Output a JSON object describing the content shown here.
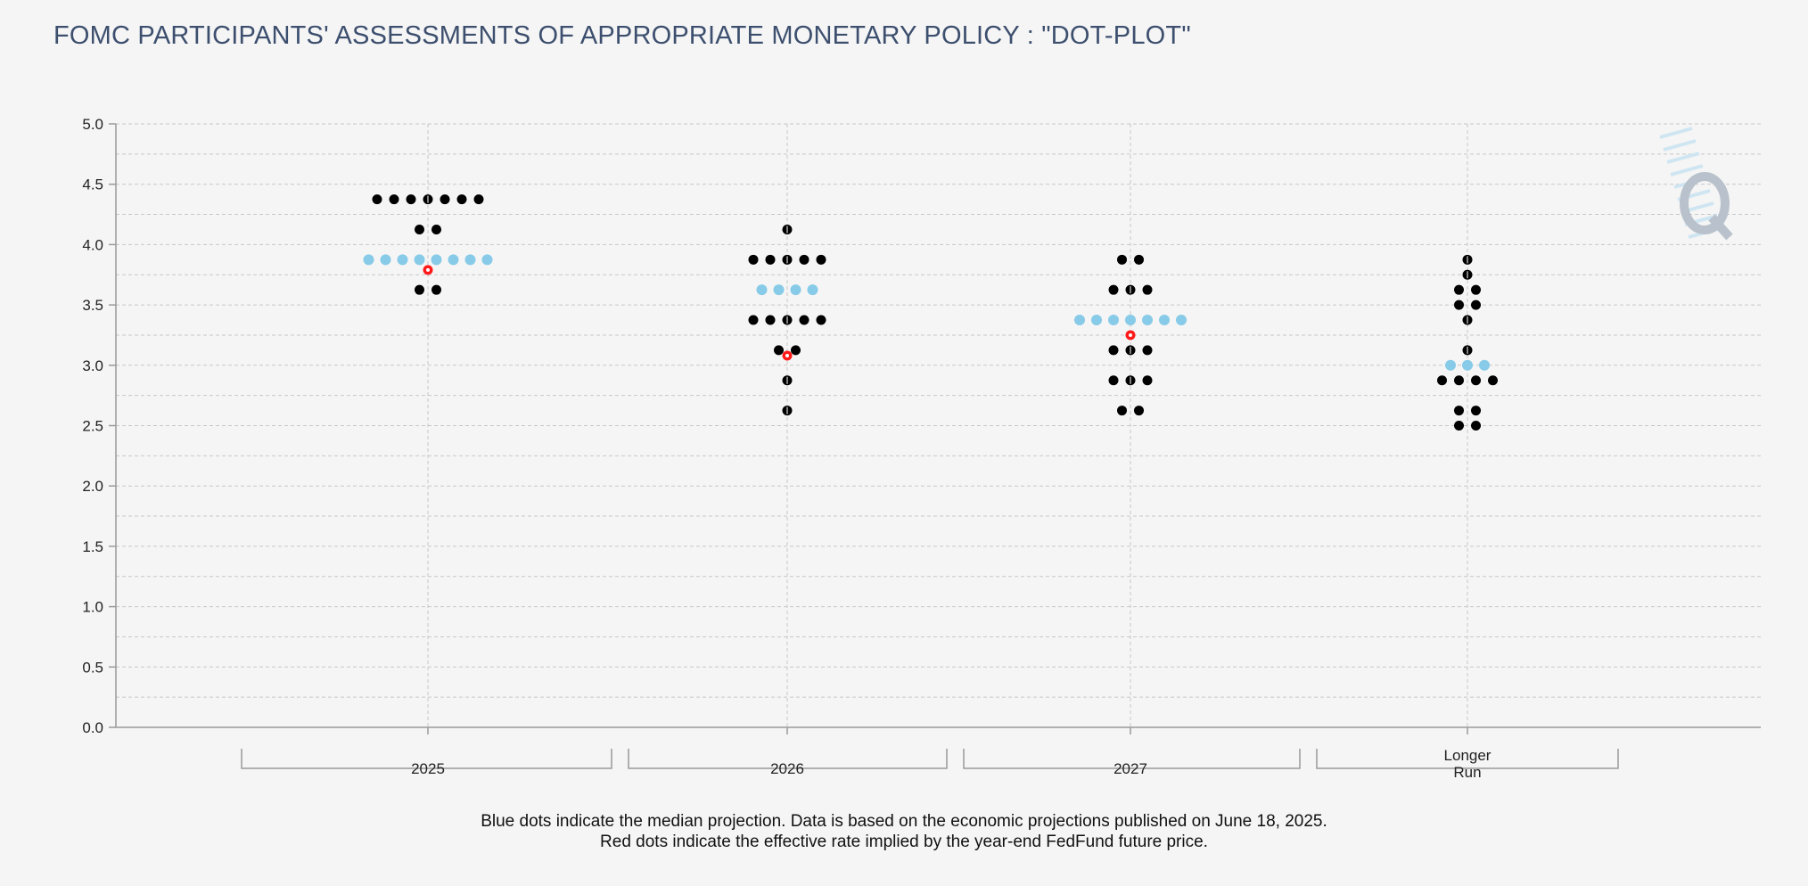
{
  "title": "FOMC PARTICIPANTS' ASSESSMENTS OF APPROPRIATE MONETARY POLICY : \"DOT-PLOT\"",
  "footnote": {
    "line1": "Blue dots indicate the median projection. Data is based on the economic projections published on June 18, 2025.",
    "line2": "Red dots indicate the effective rate implied by the year-end FedFund future price."
  },
  "colors": {
    "participant": "#000000",
    "median": "#87cbe8",
    "implied": "#ff1a1a",
    "grid": "#c8c8c8",
    "axis": "#9a9a9a",
    "logo": "#b9c2cc",
    "logo_stripes": "#cfe6f2"
  },
  "logo_icon": "q-logo-icon",
  "chart_data": {
    "type": "scatter",
    "title": "FOMC PARTICIPANTS' ASSESSMENTS OF APPROPRIATE MONETARY POLICY : \"DOT-PLOT\"",
    "xlabel": "",
    "ylabel": "",
    "ylim": [
      0,
      5.0
    ],
    "yticks": [
      "0.0",
      "0.5",
      "1.0",
      "1.5",
      "2.0",
      "2.5",
      "3.0",
      "3.5",
      "4.0",
      "4.5",
      "5.0"
    ],
    "grid": true,
    "categories": [
      "2025",
      "2026",
      "2027",
      "Longer Run"
    ],
    "category_labels": [
      [
        "2025"
      ],
      [
        "2026"
      ],
      [
        "2027"
      ],
      [
        "Longer",
        "Run"
      ]
    ],
    "series": [
      {
        "role": "participants",
        "points": [
          [
            {
              "y": 4.375,
              "count": 7
            },
            {
              "y": 4.125,
              "count": 2
            },
            {
              "y": 3.625,
              "count": 2
            }
          ],
          [
            {
              "y": 4.125,
              "count": 1
            },
            {
              "y": 3.875,
              "count": 5
            },
            {
              "y": 3.375,
              "count": 5
            },
            {
              "y": 3.125,
              "count": 2
            },
            {
              "y": 2.875,
              "count": 1
            },
            {
              "y": 2.625,
              "count": 1
            }
          ],
          [
            {
              "y": 3.875,
              "count": 2
            },
            {
              "y": 3.625,
              "count": 3
            },
            {
              "y": 3.125,
              "count": 3
            },
            {
              "y": 2.875,
              "count": 3
            },
            {
              "y": 2.625,
              "count": 2
            }
          ],
          [
            {
              "y": 3.875,
              "count": 1
            },
            {
              "y": 3.75,
              "count": 1
            },
            {
              "y": 3.625,
              "count": 2
            },
            {
              "y": 3.5,
              "count": 2
            },
            {
              "y": 3.375,
              "count": 1
            },
            {
              "y": 3.125,
              "count": 1
            },
            {
              "y": 2.875,
              "count": 4
            },
            {
              "y": 2.625,
              "count": 2
            },
            {
              "y": 2.5,
              "count": 2
            }
          ]
        ]
      },
      {
        "role": "median",
        "points": [
          [
            {
              "y": 3.875,
              "count": 8
            }
          ],
          [
            {
              "y": 3.625,
              "count": 4
            }
          ],
          [
            {
              "y": 3.375,
              "count": 7
            }
          ],
          [
            {
              "y": 3.0,
              "count": 3
            }
          ]
        ]
      },
      {
        "role": "implied",
        "points": [
          [
            {
              "y": 3.79,
              "count": 1
            }
          ],
          [
            {
              "y": 3.08,
              "count": 1
            }
          ],
          [
            {
              "y": 3.25,
              "count": 1
            }
          ],
          []
        ]
      }
    ]
  }
}
